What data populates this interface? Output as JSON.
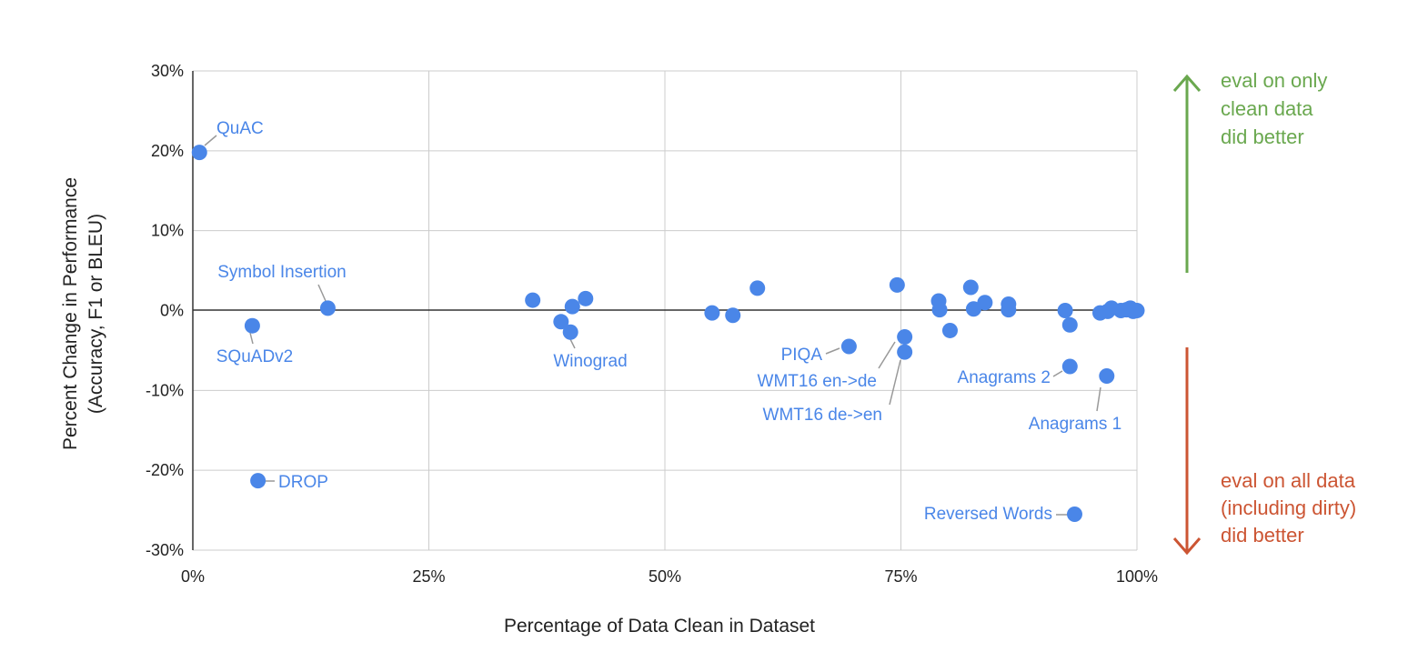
{
  "chart_data": {
    "type": "scatter",
    "xlabel": "Percentage of Data Clean in Dataset",
    "ylabel": "Percent Change in Performance",
    "ylabel_sub": "(Accuracy,  F1 or BLEU)",
    "xlim": [
      0,
      100
    ],
    "ylim": [
      -30,
      30
    ],
    "x_ticks": [
      0,
      25,
      50,
      75,
      100
    ],
    "x_tick_labels": [
      "0%",
      "25%",
      "50%",
      "75%",
      "100%"
    ],
    "y_ticks": [
      -30,
      -20,
      -10,
      0,
      10,
      20,
      30
    ],
    "y_tick_labels": [
      "-30%",
      "-20%",
      "-10%",
      "0%",
      "10%",
      "20%",
      "30%"
    ],
    "grid": true,
    "marker_color": "#4a86e8",
    "points": [
      {
        "x": 0.7,
        "y": 19.8,
        "label": "QuAC"
      },
      {
        "x": 14.3,
        "y": 0.3,
        "label": "Symbol Insertion"
      },
      {
        "x": 6.3,
        "y": -1.9,
        "label": "SQuADv2"
      },
      {
        "x": 6.9,
        "y": -21.3,
        "label": "DROP"
      },
      {
        "x": 36.0,
        "y": 1.3
      },
      {
        "x": 39.0,
        "y": -1.4
      },
      {
        "x": 40.2,
        "y": 0.5
      },
      {
        "x": 41.6,
        "y": 1.5
      },
      {
        "x": 40.0,
        "y": -2.7,
        "label": "Winograd"
      },
      {
        "x": 55.0,
        "y": -0.3
      },
      {
        "x": 57.2,
        "y": -0.6
      },
      {
        "x": 59.8,
        "y": 2.8
      },
      {
        "x": 69.5,
        "y": -4.5,
        "label": "PIQA"
      },
      {
        "x": 74.6,
        "y": 3.2
      },
      {
        "x": 75.4,
        "y": -3.3,
        "label": "WMT16 en->de"
      },
      {
        "x": 75.4,
        "y": -5.2,
        "label": "WMT16 de->en"
      },
      {
        "x": 79.0,
        "y": 1.2
      },
      {
        "x": 79.1,
        "y": 0.1
      },
      {
        "x": 80.2,
        "y": -2.5
      },
      {
        "x": 82.4,
        "y": 2.9
      },
      {
        "x": 82.7,
        "y": 0.2
      },
      {
        "x": 83.9,
        "y": 1.0
      },
      {
        "x": 86.4,
        "y": 0.8
      },
      {
        "x": 86.4,
        "y": 0.1
      },
      {
        "x": 92.4,
        "y": 0.0
      },
      {
        "x": 92.9,
        "y": -1.8
      },
      {
        "x": 92.9,
        "y": -7.0,
        "label": "Anagrams 2"
      },
      {
        "x": 93.4,
        "y": -25.5,
        "label": "Reversed Words"
      },
      {
        "x": 96.8,
        "y": -8.2,
        "label": "Anagrams 1"
      },
      {
        "x": 96.1,
        "y": -0.3
      },
      {
        "x": 96.9,
        "y": -0.1
      },
      {
        "x": 97.3,
        "y": 0.3
      },
      {
        "x": 98.3,
        "y": 0.0
      },
      {
        "x": 98.9,
        "y": 0.1
      },
      {
        "x": 99.3,
        "y": 0.3
      },
      {
        "x": 99.6,
        "y": -0.1
      },
      {
        "x": 100.0,
        "y": 0.0
      }
    ],
    "annotations": {
      "up": {
        "text": [
          "eval on only",
          "clean data",
          "did better"
        ],
        "color": "#6aa84f"
      },
      "down": {
        "text": [
          "eval on all data",
          "(including dirty)",
          "did better"
        ],
        "color": "#cc5533"
      }
    }
  }
}
